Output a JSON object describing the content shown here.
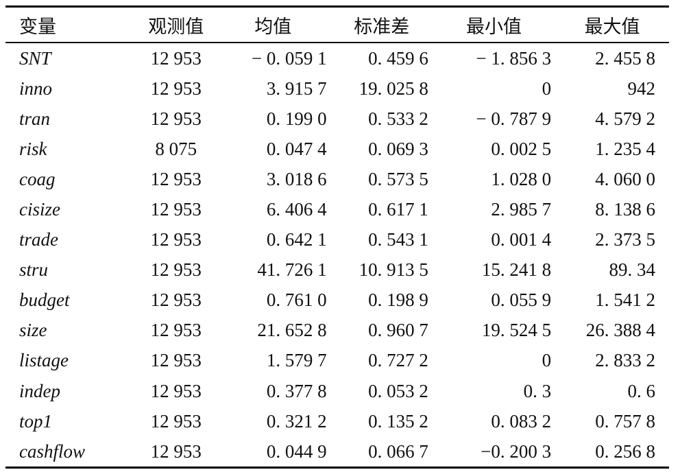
{
  "table": {
    "header": [
      "变量",
      "观测值",
      "均值",
      "标准差",
      "最小值",
      "最大值"
    ],
    "rows": [
      [
        "SNT",
        "12 953",
        "− 0. 059 1",
        "0. 459 6",
        "− 1. 856 3",
        "2. 455 8"
      ],
      [
        "inno",
        "12 953",
        "3. 915 7",
        "19. 025 8",
        "0",
        "942"
      ],
      [
        "tran",
        "12 953",
        "0. 199 0",
        "0. 533 2",
        "− 0. 787 9",
        "4. 579 2"
      ],
      [
        "risk",
        "8 075",
        "0. 047 4",
        "0. 069 3",
        "0. 002 5",
        "1. 235 4"
      ],
      [
        "coag",
        "12 953",
        "3. 018 6",
        "0. 573 5",
        "1. 028 0",
        "4. 060 0"
      ],
      [
        "cisize",
        "12 953",
        "6. 406 4",
        "0. 617 1",
        "2. 985 7",
        "8. 138 6"
      ],
      [
        "trade",
        "12 953",
        "0. 642 1",
        "0. 543 1",
        "0. 001 4",
        "2. 373 5"
      ],
      [
        "stru",
        "12 953",
        "41. 726 1",
        "10. 913 5",
        "15. 241 8",
        "89. 34"
      ],
      [
        "budget",
        "12 953",
        "0. 761 0",
        "0. 198 9",
        "0. 055 9",
        "1. 541 2"
      ],
      [
        "size",
        "12 953",
        "21. 652 8",
        "0. 960 7",
        "19. 524 5",
        "26. 388 4"
      ],
      [
        "listage",
        "12 953",
        "1. 579 7",
        "0. 727 2",
        "0",
        "2. 833 2"
      ],
      [
        "indep",
        "12 953",
        "0. 377 8",
        "0. 053 2",
        "0. 3",
        "0. 6"
      ],
      [
        "top1",
        "12 953",
        "0. 321 2",
        "0. 135 2",
        "0. 083 2",
        "0. 757 8"
      ],
      [
        "cashflow",
        "12 953",
        "0. 044 9",
        "0. 066 7",
        "−0. 200 3",
        "0. 256 8"
      ]
    ]
  }
}
